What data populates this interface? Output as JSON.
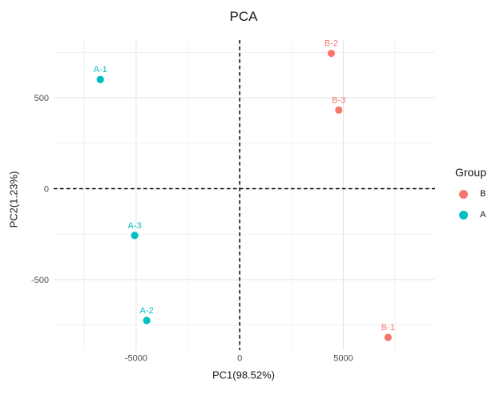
{
  "chart_data": {
    "type": "scatter",
    "title": "PCA",
    "xlabel": "PC1(98.52%)",
    "ylabel": "PC2(1.23%)",
    "xlim": [
      -8980,
      9430
    ],
    "ylim": [
      -888,
      818
    ],
    "grid": true,
    "x_ticks": [
      {
        "value": -5000,
        "label": "-5000"
      },
      {
        "value": 0,
        "label": "0"
      },
      {
        "value": 5000,
        "label": "5000"
      }
    ],
    "x_minor_ticks": [
      -7500,
      -2500,
      2500,
      7500
    ],
    "y_ticks": [
      {
        "value": -500,
        "label": "-500"
      },
      {
        "value": 0,
        "label": "0"
      },
      {
        "value": 500,
        "label": "500"
      }
    ],
    "y_minor_ticks": [
      -750,
      -250,
      250,
      750
    ],
    "zero_lines": {
      "x": 0,
      "y": 0,
      "style": "dashed",
      "color": "#000000"
    },
    "series": [
      {
        "name": "B",
        "color": "#F8766D",
        "points": [
          {
            "label": "B-1",
            "x": 7160,
            "y": -818
          },
          {
            "label": "B-2",
            "x": 4420,
            "y": 745
          },
          {
            "label": "B-3",
            "x": 4780,
            "y": 433
          }
        ]
      },
      {
        "name": "A",
        "color": "#00BFC4",
        "points": [
          {
            "label": "A-1",
            "x": -6730,
            "y": 601
          },
          {
            "label": "A-2",
            "x": -4490,
            "y": -725
          },
          {
            "label": "A-3",
            "x": -5070,
            "y": -257
          }
        ]
      }
    ],
    "legend": {
      "title": "Group",
      "position": "right",
      "entries": [
        {
          "label": "B",
          "color": "#F8766D"
        },
        {
          "label": "A",
          "color": "#00BFC4"
        }
      ]
    },
    "style": {
      "background": "#FFFFFF",
      "grid_major_color": "#E3E3E3",
      "grid_minor_color": "#F1F1F1",
      "tick_label_color": "#4D4D4D",
      "text_color": "#1A1A1A",
      "point_radius": 4.6
    }
  }
}
